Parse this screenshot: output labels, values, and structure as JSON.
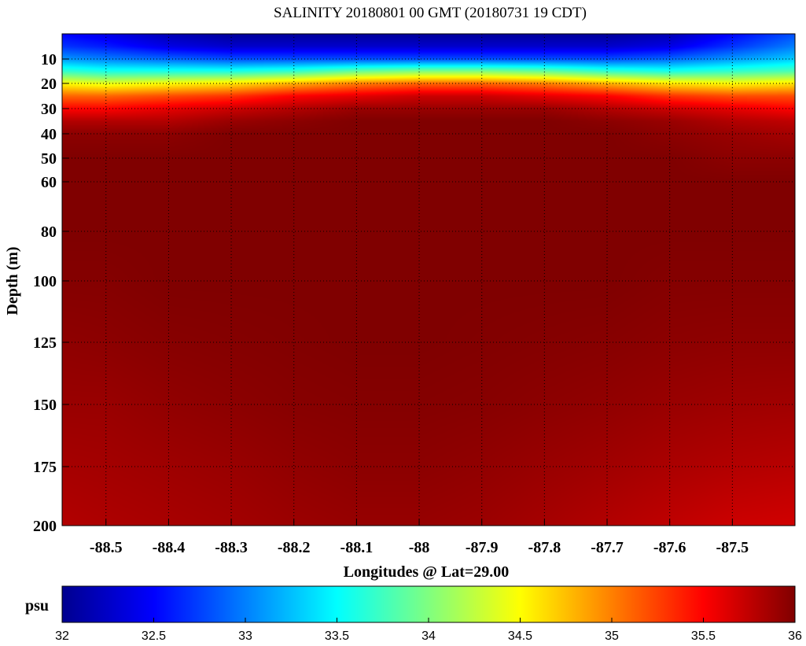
{
  "chart_data": {
    "type": "heatmap",
    "title": "SALINITY 20180801 00 GMT (20180731 19 CDT)",
    "xlabel": "Longitudes @ Lat=29.00",
    "ylabel": "Depth (m)",
    "xlim": [
      -88.57,
      -87.4
    ],
    "ylim": [
      200,
      0
    ],
    "x_ticks": [
      -88.5,
      -88.4,
      -88.3,
      -88.2,
      -88.1,
      -88,
      -87.9,
      -87.8,
      -87.7,
      -87.6,
      -87.5
    ],
    "x_tick_labels": [
      "-88.5",
      "-88.4",
      "-88.3",
      "-88.2",
      "-88.1",
      "-88",
      "-87.9",
      "-87.8",
      "-87.7",
      "-87.6",
      "-87.5"
    ],
    "y_ticks": [
      10,
      20,
      30,
      40,
      50,
      60,
      80,
      100,
      125,
      150,
      175,
      200
    ],
    "y_tick_labels": [
      "10",
      "20",
      "30",
      "40",
      "50",
      "60",
      "80",
      "100",
      "125",
      "150",
      "175",
      "200"
    ],
    "y_scale": "stretched (denser near surface)",
    "grid": true,
    "colorbar": {
      "label": "psu",
      "min": 32,
      "max": 36,
      "ticks": [
        32,
        32.5,
        33,
        33.5,
        34,
        34.5,
        35,
        35.5,
        36
      ],
      "tick_labels": [
        "32",
        "32.5",
        "33",
        "33.5",
        "34",
        "34.5",
        "35",
        "35.5",
        "36"
      ],
      "colormap": "jet",
      "position": "bottom"
    },
    "longitudes": [
      -88.57,
      -88.5,
      -88.4,
      -88.3,
      -88.2,
      -88.1,
      -88,
      -87.9,
      -87.8,
      -87.7,
      -87.6,
      -87.5,
      -87.4
    ],
    "depths": [
      0,
      5,
      10,
      15,
      20,
      25,
      30,
      35,
      40,
      50,
      60,
      80,
      100,
      125,
      150,
      175,
      200
    ],
    "values": [
      [
        32.5,
        32.4,
        32.2,
        32.1,
        32.1,
        32.1,
        32.1,
        32.1,
        32.1,
        32.1,
        32.2,
        32.5,
        32.8
      ],
      [
        32.7,
        32.6,
        32.4,
        32.3,
        32.3,
        32.3,
        32.3,
        32.3,
        32.3,
        32.3,
        32.4,
        32.7,
        33.0
      ],
      [
        33.1,
        33.0,
        32.9,
        32.8,
        32.8,
        32.8,
        32.8,
        32.8,
        32.8,
        32.8,
        32.9,
        33.1,
        33.3
      ],
      [
        33.7,
        33.6,
        33.6,
        33.6,
        33.7,
        33.9,
        34.0,
        34.0,
        33.9,
        33.7,
        33.6,
        33.7,
        33.8
      ],
      [
        34.5,
        34.4,
        34.5,
        34.6,
        34.8,
        35.0,
        35.1,
        35.1,
        35.0,
        34.8,
        34.6,
        34.5,
        34.6
      ],
      [
        35.1,
        35.1,
        35.2,
        35.3,
        35.5,
        35.6,
        35.7,
        35.7,
        35.6,
        35.5,
        35.3,
        35.2,
        35.2
      ],
      [
        35.5,
        35.5,
        35.6,
        35.7,
        35.8,
        35.9,
        35.9,
        35.9,
        35.9,
        35.8,
        35.7,
        35.6,
        35.5
      ],
      [
        35.8,
        35.8,
        35.8,
        35.9,
        35.95,
        36.0,
        36.0,
        36.0,
        36.0,
        35.95,
        35.9,
        35.8,
        35.75
      ],
      [
        35.95,
        35.95,
        35.95,
        36.0,
        36.0,
        36.0,
        36.0,
        36.0,
        36.0,
        36.0,
        35.95,
        35.9,
        35.85
      ],
      [
        36.0,
        36.0,
        36.0,
        36.0,
        36.0,
        36.0,
        36.0,
        36.0,
        36.0,
        36.0,
        36.0,
        35.95,
        35.95
      ],
      [
        36.0,
        36.0,
        36.0,
        36.0,
        36.0,
        36.0,
        36.0,
        36.0,
        36.0,
        36.0,
        36.0,
        36.0,
        36.0
      ],
      [
        36.0,
        36.0,
        36.0,
        36.0,
        36.0,
        36.0,
        36.0,
        36.0,
        36.0,
        36.0,
        36.0,
        36.0,
        36.0
      ],
      [
        35.98,
        35.98,
        36.0,
        36.0,
        36.0,
        36.0,
        36.0,
        36.0,
        36.0,
        36.0,
        35.98,
        35.98,
        35.98
      ],
      [
        35.94,
        35.95,
        35.97,
        35.98,
        35.99,
        36.0,
        36.0,
        35.99,
        35.98,
        35.97,
        35.95,
        35.94,
        35.94
      ],
      [
        35.9,
        35.9,
        35.93,
        35.95,
        35.97,
        35.98,
        35.98,
        35.97,
        35.95,
        35.93,
        35.9,
        35.88,
        35.87
      ],
      [
        35.85,
        35.86,
        35.88,
        35.9,
        35.93,
        35.95,
        35.95,
        35.93,
        35.9,
        35.87,
        35.83,
        35.8,
        35.78
      ],
      [
        35.8,
        35.82,
        35.84,
        35.86,
        35.89,
        35.91,
        35.91,
        35.89,
        35.85,
        35.8,
        35.75,
        35.7,
        35.68
      ]
    ]
  }
}
